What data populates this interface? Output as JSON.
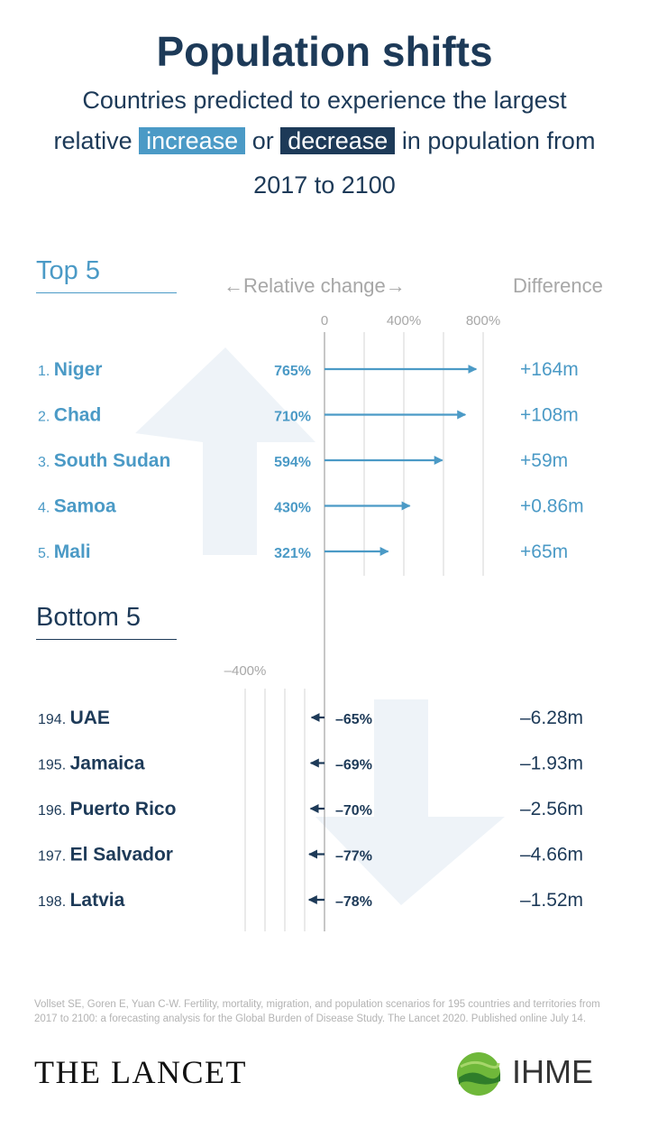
{
  "header": {
    "title": "Population shifts",
    "subtitle_line1": "Countries predicted to experience the largest",
    "subtitle_relative": "relative",
    "subtitle_increase": "increase",
    "subtitle_or": "or",
    "subtitle_decrease": "decrease",
    "subtitle_in_population": "in population from",
    "subtitle_line3": "2017 to 2100"
  },
  "labels": {
    "top_section": "Top 5",
    "bottom_section": "Bottom 5",
    "relative_change": "←Relative change→",
    "difference": "Difference"
  },
  "colors": {
    "increase": "#4b9ac6",
    "decrease": "#1d3a58",
    "arrow_background": "#eef3f8",
    "gridline": "#d6d6d6",
    "axis": "#a9a9a9"
  },
  "chart_data": {
    "type": "bar",
    "metric": "Relative change in population 2017–2100",
    "unit": "%",
    "xlim": [
      -450,
      800
    ],
    "top_ticks": [
      {
        "value": 0,
        "label": "0"
      },
      {
        "value": 400,
        "label": "400%"
      },
      {
        "value": 800,
        "label": "800%"
      }
    ],
    "top_gridlines": [
      200,
      400,
      600,
      800
    ],
    "bottom_ticks": [
      {
        "value": -400,
        "label": "–400%"
      }
    ],
    "bottom_gridlines": [
      -400,
      -300,
      -200,
      -100
    ],
    "top": [
      {
        "rank": "1.",
        "country": "Niger",
        "value": 765,
        "label": "765%",
        "difference": "+164m"
      },
      {
        "rank": "2.",
        "country": "Chad",
        "value": 710,
        "label": "710%",
        "difference": "+108m"
      },
      {
        "rank": "3.",
        "country": "South Sudan",
        "value": 594,
        "label": "594%",
        "difference": "+59m"
      },
      {
        "rank": "4.",
        "country": "Samoa",
        "value": 430,
        "label": "430%",
        "difference": "+0.86m"
      },
      {
        "rank": "5.",
        "country": "Mali",
        "value": 321,
        "label": "321%",
        "difference": "+65m"
      }
    ],
    "bottom": [
      {
        "rank": "194.",
        "country": "UAE",
        "value": -65,
        "label": "–65%",
        "difference": "–6.28m"
      },
      {
        "rank": "195.",
        "country": "Jamaica",
        "value": -69,
        "label": "–69%",
        "difference": "–1.93m"
      },
      {
        "rank": "196.",
        "country": "Puerto Rico",
        "value": -70,
        "label": "–70%",
        "difference": "–2.56m"
      },
      {
        "rank": "197.",
        "country": "El Salvador",
        "value": -77,
        "label": "–77%",
        "difference": "–4.66m"
      },
      {
        "rank": "198.",
        "country": "Latvia",
        "value": -78,
        "label": "–78%",
        "difference": "–1.52m"
      }
    ]
  },
  "footer": {
    "citation": "Vollset SE, Goren E, Yuan C-W. Fertility, mortality, migration, and population scenarios for 195 countries and territories from 2017 to 2100: a forecasting analysis for the Global Burden of Disease Study. The Lancet 2020. Published online July 14.",
    "lancet_logo": "THE LANCET",
    "ihme_logo": "IHME"
  }
}
